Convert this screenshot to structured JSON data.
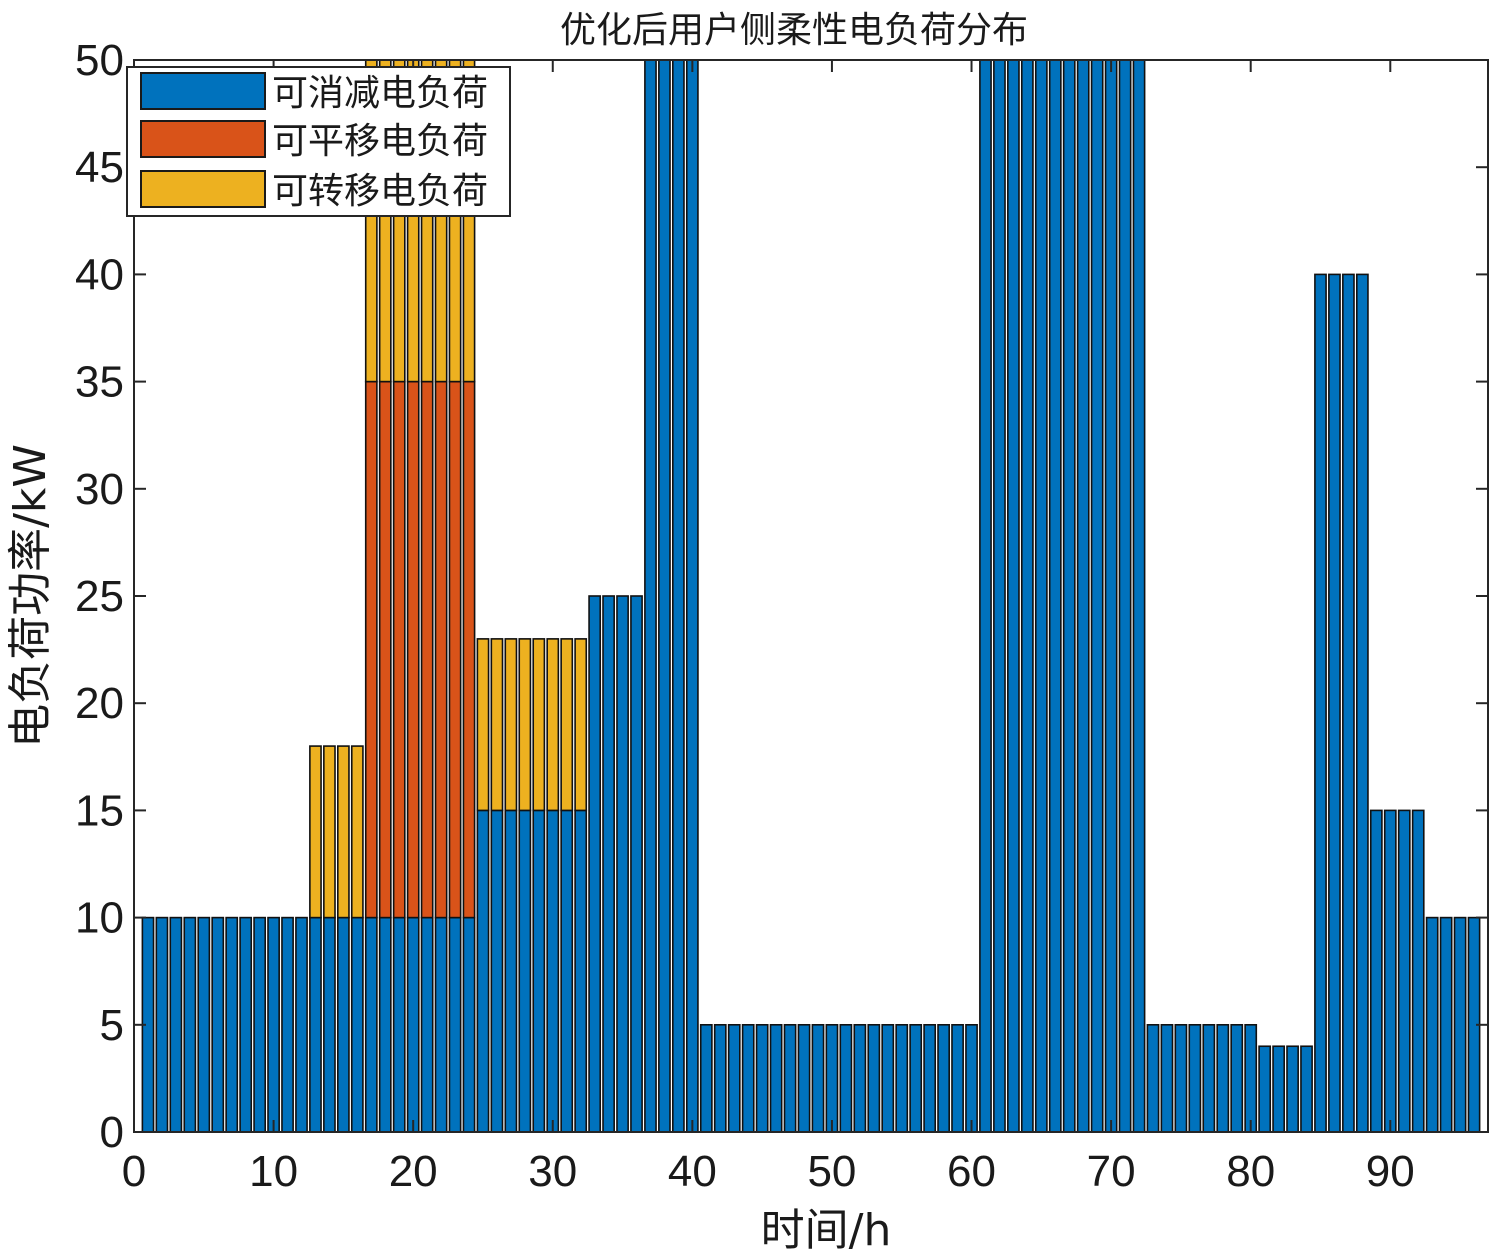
{
  "chart_data": {
    "type": "bar",
    "stacked": true,
    "title": "优化后用户侧柔性电负荷分布",
    "xlabel": "时间/h",
    "ylabel": "电负荷功率/kW",
    "xlim": [
      0,
      97
    ],
    "ylim": [
      0,
      50
    ],
    "xticks": [
      0,
      10,
      20,
      30,
      40,
      50,
      60,
      70,
      80,
      90
    ],
    "yticks": [
      0,
      5,
      10,
      15,
      20,
      25,
      30,
      35,
      40,
      45,
      50
    ],
    "legend_position": "top-left",
    "x": [
      1,
      2,
      3,
      4,
      5,
      6,
      7,
      8,
      9,
      10,
      11,
      12,
      13,
      14,
      15,
      16,
      17,
      18,
      19,
      20,
      21,
      22,
      23,
      24,
      25,
      26,
      27,
      28,
      29,
      30,
      31,
      32,
      33,
      34,
      35,
      36,
      37,
      38,
      39,
      40,
      41,
      42,
      43,
      44,
      45,
      46,
      47,
      48,
      49,
      50,
      51,
      52,
      53,
      54,
      55,
      56,
      57,
      58,
      59,
      60,
      61,
      62,
      63,
      64,
      65,
      66,
      67,
      68,
      69,
      70,
      71,
      72,
      73,
      74,
      75,
      76,
      77,
      78,
      79,
      80,
      81,
      82,
      83,
      84,
      85,
      86,
      87,
      88,
      89,
      90,
      91,
      92,
      93,
      94,
      95,
      96
    ],
    "series": [
      {
        "name": "可消减电负荷",
        "color": "#0072BD",
        "values": [
          10,
          10,
          10,
          10,
          10,
          10,
          10,
          10,
          10,
          10,
          10,
          10,
          10,
          10,
          10,
          10,
          10,
          10,
          10,
          10,
          10,
          10,
          10,
          10,
          15,
          15,
          15,
          15,
          15,
          15,
          15,
          15,
          25,
          25,
          25,
          25,
          50,
          50,
          50,
          50,
          5,
          5,
          5,
          5,
          5,
          5,
          5,
          5,
          5,
          5,
          5,
          5,
          5,
          5,
          5,
          5,
          5,
          5,
          5,
          5,
          50,
          50,
          50,
          50,
          50,
          50,
          50,
          50,
          50,
          50,
          50,
          50,
          5,
          5,
          5,
          5,
          5,
          5,
          5,
          5,
          4,
          4,
          4,
          4,
          40,
          40,
          40,
          40,
          15,
          15,
          15,
          15,
          10,
          10,
          10,
          10
        ]
      },
      {
        "name": "可平移电负荷",
        "color": "#D95319",
        "values": [
          0,
          0,
          0,
          0,
          0,
          0,
          0,
          0,
          0,
          0,
          0,
          0,
          0,
          0,
          0,
          0,
          25,
          25,
          25,
          25,
          25,
          25,
          25,
          25,
          0,
          0,
          0,
          0,
          0,
          0,
          0,
          0,
          0,
          0,
          0,
          0,
          0,
          0,
          0,
          0,
          0,
          0,
          0,
          0,
          0,
          0,
          0,
          0,
          0,
          0,
          0,
          0,
          0,
          0,
          0,
          0,
          0,
          0,
          0,
          0,
          0,
          0,
          0,
          0,
          0,
          0,
          0,
          0,
          0,
          0,
          0,
          0,
          0,
          0,
          0,
          0,
          0,
          0,
          0,
          0,
          0,
          0,
          0,
          0,
          0,
          0,
          0,
          0,
          0,
          0,
          0,
          0,
          0,
          0,
          0,
          0
        ]
      },
      {
        "name": "可转移电负荷",
        "color": "#EDB120",
        "values": [
          0,
          0,
          0,
          0,
          0,
          0,
          0,
          0,
          0,
          0,
          0,
          0,
          8,
          8,
          8,
          8,
          15,
          15,
          15,
          15,
          15,
          15,
          15,
          15,
          8,
          8,
          8,
          8,
          8,
          8,
          8,
          8,
          0,
          0,
          0,
          0,
          0,
          0,
          0,
          0,
          0,
          0,
          0,
          0,
          0,
          0,
          0,
          0,
          0,
          0,
          0,
          0,
          0,
          0,
          0,
          0,
          0,
          0,
          0,
          0,
          0,
          0,
          0,
          0,
          0,
          0,
          0,
          0,
          0,
          0,
          0,
          0,
          0,
          0,
          0,
          0,
          0,
          0,
          0,
          0,
          0,
          0,
          0,
          0,
          0,
          0,
          0,
          0,
          0,
          0,
          0,
          0,
          0,
          0,
          0,
          0
        ]
      }
    ]
  }
}
